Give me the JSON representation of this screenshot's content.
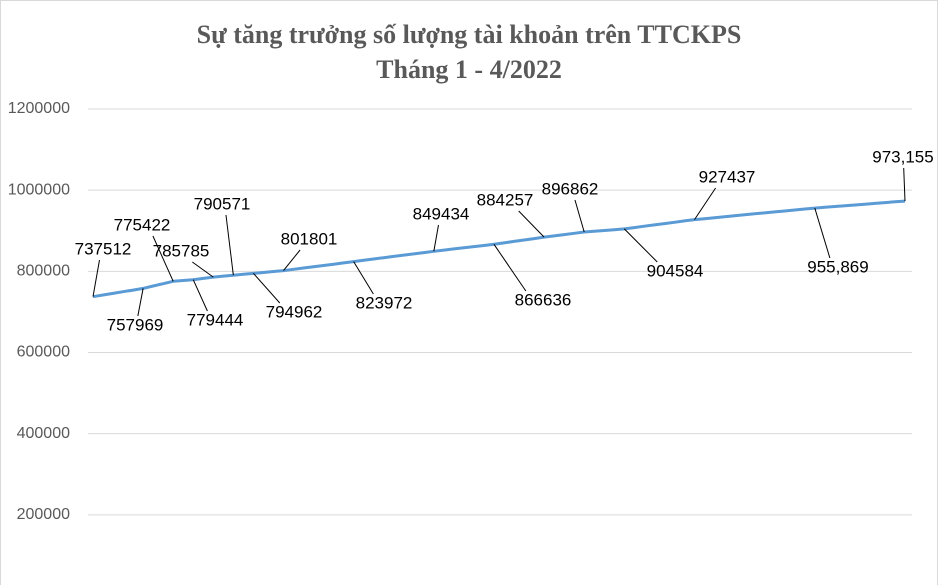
{
  "chart_data": {
    "type": "line",
    "title": "Sự tăng trưởng số lượng tài khoản trên TTCKPS",
    "subtitle": "Tháng 1 - 4/2022",
    "categories": [
      null,
      null,
      null,
      null,
      null,
      null,
      null,
      null,
      null,
      null,
      null,
      null,
      null,
      null,
      null,
      null,
      null,
      null,
      null,
      null,
      null,
      null,
      null,
      null,
      null,
      null,
      null,
      null,
      null,
      null,
      null,
      null,
      null,
      null,
      null,
      null,
      null,
      null,
      null,
      null,
      null,
      null,
      null,
      null,
      null,
      null,
      null,
      null,
      null,
      null,
      null,
      null,
      null,
      null,
      null,
      null,
      null,
      null,
      null,
      null,
      null,
      null,
      null,
      null,
      null,
      null,
      null,
      null,
      null,
      null,
      null,
      null,
      null,
      null,
      null,
      null,
      null,
      null,
      null,
      null,
      null,
      null
    ],
    "series": [
      {
        "name": "Số lượng tài khoản",
        "color": "#5b9bd5",
        "values": [
          737512,
          741603,
          745695,
          749786,
          753878,
          757969,
          763787,
          769604,
          775422,
          777433,
          779444,
          782615,
          785785,
          788178,
          790571,
          792767,
          794962,
          797242,
          799521,
          801801,
          804968,
          808135,
          811303,
          814470,
          817637,
          820805,
          823972,
          827155,
          830338,
          833520,
          836703,
          839886,
          843069,
          846251,
          849434,
          852301,
          855168,
          858035,
          860902,
          863769,
          866636,
          870160,
          873684,
          877208,
          880733,
          884257,
          887408,
          890559,
          893711,
          896862,
          898793,
          900723,
          902654,
          904584,
          907849,
          911114,
          914378,
          917643,
          920908,
          924172,
          927437,
          929806,
          932175,
          934545,
          936914,
          939284,
          941653,
          944022,
          946392,
          948761,
          951131,
          953500,
          955869,
          957790,
          959711,
          961632,
          963552,
          965473,
          967394,
          969314,
          971235,
          973155
        ],
        "value_labels": [
          "737512",
          null,
          null,
          null,
          null,
          "757969",
          null,
          null,
          "775422",
          null,
          "779444",
          null,
          "785785",
          null,
          "790571",
          null,
          "794962",
          null,
          null,
          "801801",
          null,
          null,
          null,
          null,
          null,
          null,
          "823972",
          null,
          null,
          null,
          null,
          null,
          null,
          null,
          "849434",
          null,
          null,
          null,
          null,
          null,
          "866636",
          null,
          null,
          null,
          null,
          "884257",
          null,
          null,
          null,
          "896862",
          null,
          null,
          null,
          "904584",
          null,
          null,
          null,
          null,
          null,
          null,
          "927437",
          null,
          null,
          null,
          null,
          null,
          null,
          null,
          null,
          null,
          null,
          null,
          "955,869",
          null,
          null,
          null,
          null,
          null,
          null,
          null,
          null,
          "973,155"
        ]
      }
    ],
    "ylim": [
      0,
      1200000
    ],
    "yticks": [
      200000,
      400000,
      600000,
      800000,
      1000000,
      1200000
    ],
    "grid": true
  }
}
